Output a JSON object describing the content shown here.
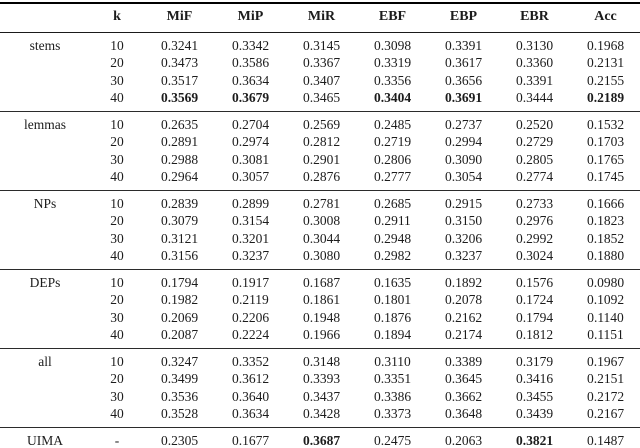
{
  "table": {
    "headers": [
      "",
      "k",
      "MiF",
      "MiP",
      "MiR",
      "EBF",
      "EBP",
      "EBR",
      "Acc"
    ],
    "groups": [
      {
        "label": "stems",
        "rows": [
          {
            "k": "10",
            "values": [
              "0.3241",
              "0.3342",
              "0.3145",
              "0.3098",
              "0.3391",
              "0.3130",
              "0.1968"
            ],
            "bold": []
          },
          {
            "k": "20",
            "values": [
              "0.3473",
              "0.3586",
              "0.3367",
              "0.3319",
              "0.3617",
              "0.3360",
              "0.2131"
            ],
            "bold": []
          },
          {
            "k": "30",
            "values": [
              "0.3517",
              "0.3634",
              "0.3407",
              "0.3356",
              "0.3656",
              "0.3391",
              "0.2155"
            ],
            "bold": []
          },
          {
            "k": "40",
            "values": [
              "0.3569",
              "0.3679",
              "0.3465",
              "0.3404",
              "0.3691",
              "0.3444",
              "0.2189"
            ],
            "bold": [
              0,
              1,
              3,
              4,
              6
            ]
          }
        ]
      },
      {
        "label": "lemmas",
        "rows": [
          {
            "k": "10",
            "values": [
              "0.2635",
              "0.2704",
              "0.2569",
              "0.2485",
              "0.2737",
              "0.2520",
              "0.1532"
            ],
            "bold": []
          },
          {
            "k": "20",
            "values": [
              "0.2891",
              "0.2974",
              "0.2812",
              "0.2719",
              "0.2994",
              "0.2729",
              "0.1703"
            ],
            "bold": []
          },
          {
            "k": "30",
            "values": [
              "0.2988",
              "0.3081",
              "0.2901",
              "0.2806",
              "0.3090",
              "0.2805",
              "0.1765"
            ],
            "bold": []
          },
          {
            "k": "40",
            "values": [
              "0.2964",
              "0.3057",
              "0.2876",
              "0.2777",
              "0.3054",
              "0.2774",
              "0.1745"
            ],
            "bold": []
          }
        ]
      },
      {
        "label": "NPs",
        "rows": [
          {
            "k": "10",
            "values": [
              "0.2839",
              "0.2899",
              "0.2781",
              "0.2685",
              "0.2915",
              "0.2733",
              "0.1666"
            ],
            "bold": []
          },
          {
            "k": "20",
            "values": [
              "0.3079",
              "0.3154",
              "0.3008",
              "0.2911",
              "0.3150",
              "0.2976",
              "0.1823"
            ],
            "bold": []
          },
          {
            "k": "30",
            "values": [
              "0.3121",
              "0.3201",
              "0.3044",
              "0.2948",
              "0.3206",
              "0.2992",
              "0.1852"
            ],
            "bold": []
          },
          {
            "k": "40",
            "values": [
              "0.3156",
              "0.3237",
              "0.3080",
              "0.2982",
              "0.3237",
              "0.3024",
              "0.1880"
            ],
            "bold": []
          }
        ]
      },
      {
        "label": "DEPs",
        "rows": [
          {
            "k": "10",
            "values": [
              "0.1794",
              "0.1917",
              "0.1687",
              "0.1635",
              "0.1892",
              "0.1576",
              "0.0980"
            ],
            "bold": []
          },
          {
            "k": "20",
            "values": [
              "0.1982",
              "0.2119",
              "0.1861",
              "0.1801",
              "0.2078",
              "0.1724",
              "0.1092"
            ],
            "bold": []
          },
          {
            "k": "30",
            "values": [
              "0.2069",
              "0.2206",
              "0.1948",
              "0.1876",
              "0.2162",
              "0.1794",
              "0.1140"
            ],
            "bold": []
          },
          {
            "k": "40",
            "values": [
              "0.2087",
              "0.2224",
              "0.1966",
              "0.1894",
              "0.2174",
              "0.1812",
              "0.1151"
            ],
            "bold": []
          }
        ]
      },
      {
        "label": "all",
        "rows": [
          {
            "k": "10",
            "values": [
              "0.3247",
              "0.3352",
              "0.3148",
              "0.3110",
              "0.3389",
              "0.3179",
              "0.1967"
            ],
            "bold": []
          },
          {
            "k": "20",
            "values": [
              "0.3499",
              "0.3612",
              "0.3393",
              "0.3351",
              "0.3645",
              "0.3416",
              "0.2151"
            ],
            "bold": []
          },
          {
            "k": "30",
            "values": [
              "0.3536",
              "0.3640",
              "0.3437",
              "0.3386",
              "0.3662",
              "0.3455",
              "0.2172"
            ],
            "bold": []
          },
          {
            "k": "40",
            "values": [
              "0.3528",
              "0.3634",
              "0.3428",
              "0.3373",
              "0.3648",
              "0.3439",
              "0.2167"
            ],
            "bold": []
          }
        ]
      },
      {
        "label": "UIMA",
        "rows": [
          {
            "k": "-",
            "values": [
              "0.2305",
              "0.1677",
              "0.3687",
              "0.2475",
              "0.2063",
              "0.3821",
              "0.1487"
            ],
            "bold": [
              2,
              5
            ]
          }
        ]
      }
    ]
  }
}
